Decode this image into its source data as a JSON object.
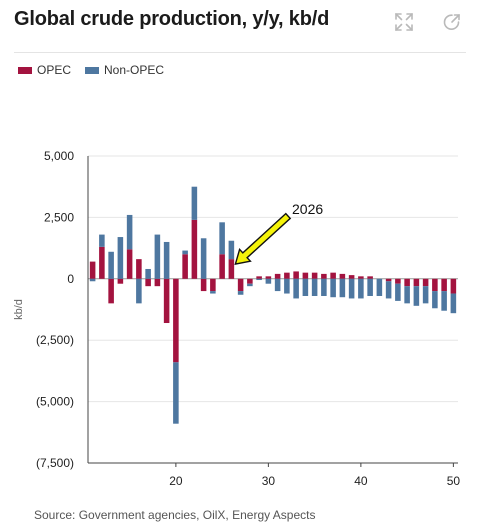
{
  "header": {
    "title": "Global crude production, y/y, kb/d",
    "expand_icon": "expand-icon",
    "share_icon": "share-arrow-icon"
  },
  "footer": {
    "source": "Source: Government agencies, OilX, Energy Aspects"
  },
  "colors": {
    "opec": "#A3133F",
    "non_opec": "#4E77A0",
    "annotation_arrow": "#F5F30A"
  },
  "chart_data": {
    "type": "bar",
    "stacked": true,
    "title": "Global crude production, y/y, kb/d",
    "ylabel": "kb/d",
    "xlabel": "",
    "ylim": [
      -7500,
      5000
    ],
    "yticks": [
      5000,
      2500,
      0,
      -2500,
      -5000,
      -7500
    ],
    "ytick_labels": [
      "5,000",
      "2,500",
      "0",
      "(2,500)",
      "(5,000)",
      "(7,500)"
    ],
    "xlim": [
      10.5,
      50.5
    ],
    "xticks": [
      20,
      30,
      40,
      50
    ],
    "xtick_labels": [
      "20",
      "30",
      "40",
      "50"
    ],
    "legend": {
      "position": "top-left",
      "entries": [
        "OPEC",
        "Non-OPEC"
      ]
    },
    "grid": {
      "horizontal": true,
      "vertical": false
    },
    "x": [
      11,
      12,
      13,
      14,
      15,
      16,
      17,
      18,
      19,
      20,
      21,
      22,
      23,
      24,
      25,
      26,
      27,
      28,
      29,
      30,
      31,
      32,
      33,
      34,
      35,
      36,
      37,
      38,
      39,
      40,
      41,
      42,
      43,
      44,
      45,
      46,
      47,
      48,
      49,
      50
    ],
    "series": [
      {
        "name": "OPEC",
        "values": [
          700,
          1300,
          -1000,
          -200,
          1200,
          800,
          -300,
          -300,
          -1800,
          -3400,
          1000,
          2400,
          -500,
          -500,
          1000,
          800,
          -500,
          -200,
          100,
          100,
          200,
          250,
          300,
          250,
          250,
          200,
          250,
          200,
          150,
          100,
          100,
          0,
          -100,
          -200,
          -300,
          -300,
          -300,
          -500,
          -500,
          -600
        ]
      },
      {
        "name": "Non-OPEC",
        "values": [
          -100,
          500,
          1100,
          1700,
          1400,
          -1000,
          400,
          1800,
          1500,
          -2500,
          150,
          1350,
          1650,
          -100,
          1300,
          750,
          -150,
          -100,
          -50,
          -200,
          -500,
          -600,
          -800,
          -700,
          -700,
          -700,
          -750,
          -750,
          -800,
          -800,
          -700,
          -700,
          -700,
          -700,
          -700,
          -800,
          -700,
          -700,
          -800,
          -800
        ]
      }
    ],
    "annotations": [
      {
        "text": "2026",
        "target_x": 26
      }
    ]
  }
}
